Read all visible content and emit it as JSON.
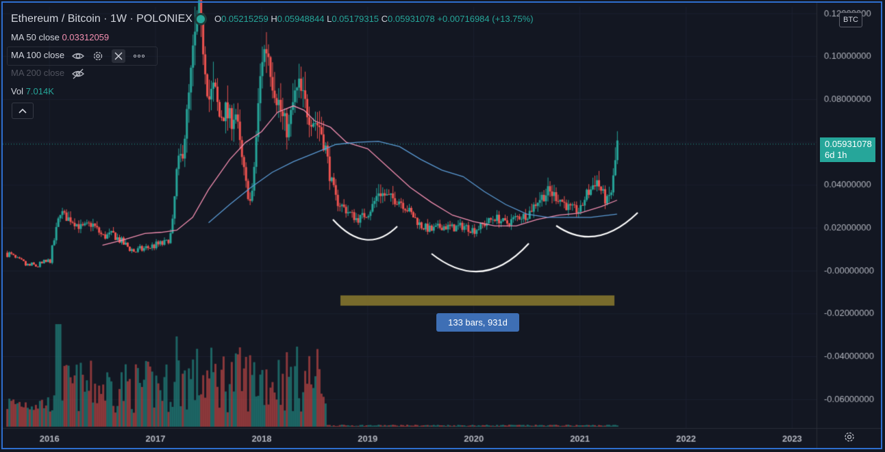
{
  "header": {
    "symbol": "Ethereum / Bitcoin · 1W · POLONIEX",
    "o_label": "O",
    "o_value": "0.05215259",
    "h_label": "H",
    "h_value": "0.05948844",
    "l_label": "L",
    "l_value": "0.05179315",
    "c_label": "C",
    "c_value": "0.05931078",
    "change": "+0.00716984 (+13.75%)"
  },
  "indicators": {
    "ma50_label": "MA 50 close",
    "ma50_value": "0.03312059",
    "ma100_label": "MA 100 close",
    "ma200_label": "MA 200 close",
    "vol_label": "Vol",
    "vol_value": "7.014K"
  },
  "price_scale": {
    "currency": "BTC",
    "last_price": "0.05931078",
    "countdown": "6d 1h"
  },
  "range_measure": {
    "label": "133 bars, 931d"
  },
  "icons": [
    "eye-icon",
    "gear-icon",
    "close-icon",
    "more-icon",
    "eye-off-icon",
    "chevron-up-icon",
    "settings-gear-icon"
  ],
  "colors": {
    "up": "#26a69a",
    "down": "#ef5350",
    "ma50": "#f48fb1",
    "ma100": "#5b9bd5",
    "accent": "#2962ff",
    "range": "#8b7a2e"
  },
  "chart_data": {
    "type": "line",
    "title": "Ethereum / Bitcoin · 1W · POLONIEX",
    "y_ticks": [
      "0.12000000",
      "0.10000000",
      "0.08000000",
      "0.06000000",
      "0.04000000",
      "0.02000000",
      "-0.00000000",
      "-0.02000000",
      "-0.04000000",
      "-0.06000000"
    ],
    "y_tick_values": [
      0.12,
      0.1,
      0.08,
      0.06,
      0.04,
      0.02,
      0.0,
      -0.02,
      -0.04,
      -0.06
    ],
    "x_ticks": [
      "2016",
      "2017",
      "2018",
      "2019",
      "2020",
      "2021",
      "2022",
      "2023"
    ],
    "x_tick_years": [
      2016,
      2017,
      2018,
      2019,
      2020,
      2021,
      2022,
      2023
    ],
    "ylim": [
      -0.072,
      0.12
    ],
    "xlim": [
      2015.56,
      2023.23
    ],
    "series": [
      {
        "kind": "price",
        "x": [
          2015.6,
          2015.7,
          2015.8,
          2015.9,
          2016.0,
          2016.1,
          2016.15,
          2016.2,
          2016.3,
          2016.4,
          2016.45,
          2016.5,
          2016.6,
          2016.7,
          2016.8,
          2016.9,
          2017.0,
          2017.1,
          2017.15,
          2017.2,
          2017.25,
          2017.3,
          2017.35,
          2017.4,
          2017.45,
          2017.5,
          2017.55,
          2017.6,
          2017.65,
          2017.7,
          2017.75,
          2017.8,
          2017.85,
          2017.9,
          2017.95,
          2018.0,
          2018.05,
          2018.1,
          2018.15,
          2018.2,
          2018.25,
          2018.3,
          2018.35,
          2018.4,
          2018.45,
          2018.5,
          2018.55,
          2018.6,
          2018.65,
          2018.7,
          2018.8,
          2018.9,
          2019.0,
          2019.05,
          2019.1,
          2019.2,
          2019.3,
          2019.4,
          2019.5,
          2019.6,
          2019.7,
          2019.8,
          2019.9,
          2020.0,
          2020.1,
          2020.2,
          2020.3,
          2020.4,
          2020.5,
          2020.6,
          2020.7,
          2020.8,
          2020.9,
          2021.0,
          2021.05,
          2021.1,
          2021.15,
          2021.2,
          2021.25,
          2021.3,
          2021.35
        ],
        "y": [
          0.0085,
          0.0045,
          0.0022,
          0.0025,
          0.0045,
          0.028,
          0.025,
          0.024,
          0.02,
          0.022,
          0.019,
          0.016,
          0.017,
          0.0125,
          0.009,
          0.0105,
          0.012,
          0.013,
          0.018,
          0.048,
          0.055,
          0.075,
          0.1,
          0.12,
          0.105,
          0.08,
          0.085,
          0.072,
          0.075,
          0.07,
          0.075,
          0.055,
          0.04,
          0.03,
          0.065,
          0.1,
          0.105,
          0.09,
          0.08,
          0.07,
          0.065,
          0.08,
          0.085,
          0.078,
          0.073,
          0.07,
          0.067,
          0.057,
          0.042,
          0.033,
          0.028,
          0.024,
          0.027,
          0.031,
          0.037,
          0.034,
          0.033,
          0.027,
          0.021,
          0.019,
          0.021,
          0.02,
          0.021,
          0.019,
          0.022,
          0.025,
          0.022,
          0.025,
          0.026,
          0.033,
          0.037,
          0.034,
          0.029,
          0.028,
          0.035,
          0.038,
          0.043,
          0.037,
          0.032,
          0.038,
          0.0593
        ]
      },
      {
        "name": "MA 50 close",
        "kind": "ma50",
        "x": [
          2016.5,
          2016.7,
          2016.9,
          2017.05,
          2017.2,
          2017.35,
          2017.5,
          2017.7,
          2017.85,
          2018.0,
          2018.15,
          2018.3,
          2018.4,
          2018.5,
          2018.65,
          2018.8,
          2019.0,
          2019.2,
          2019.4,
          2019.6,
          2019.8,
          2020.0,
          2020.2,
          2020.4,
          2020.6,
          2020.8,
          2021.0,
          2021.2,
          2021.35
        ],
        "y": [
          0.012,
          0.0145,
          0.0175,
          0.018,
          0.019,
          0.025,
          0.038,
          0.052,
          0.06,
          0.065,
          0.074,
          0.077,
          0.075,
          0.07,
          0.067,
          0.06,
          0.057,
          0.048,
          0.039,
          0.032,
          0.026,
          0.023,
          0.021,
          0.021,
          0.024,
          0.026,
          0.027,
          0.03,
          0.033
        ]
      },
      {
        "name": "MA 100 close",
        "kind": "ma100",
        "x": [
          2017.5,
          2017.7,
          2017.9,
          2018.1,
          2018.3,
          2018.5,
          2018.7,
          2018.9,
          2019.1,
          2019.3,
          2019.5,
          2019.7,
          2019.9,
          2020.1,
          2020.3,
          2020.5,
          2020.7,
          2020.9,
          2021.1,
          2021.35
        ],
        "y": [
          0.0225,
          0.031,
          0.039,
          0.046,
          0.051,
          0.055,
          0.059,
          0.06,
          0.0605,
          0.058,
          0.052,
          0.047,
          0.044,
          0.037,
          0.031,
          0.0265,
          0.025,
          0.025,
          0.025,
          0.0265
        ]
      }
    ]
  }
}
